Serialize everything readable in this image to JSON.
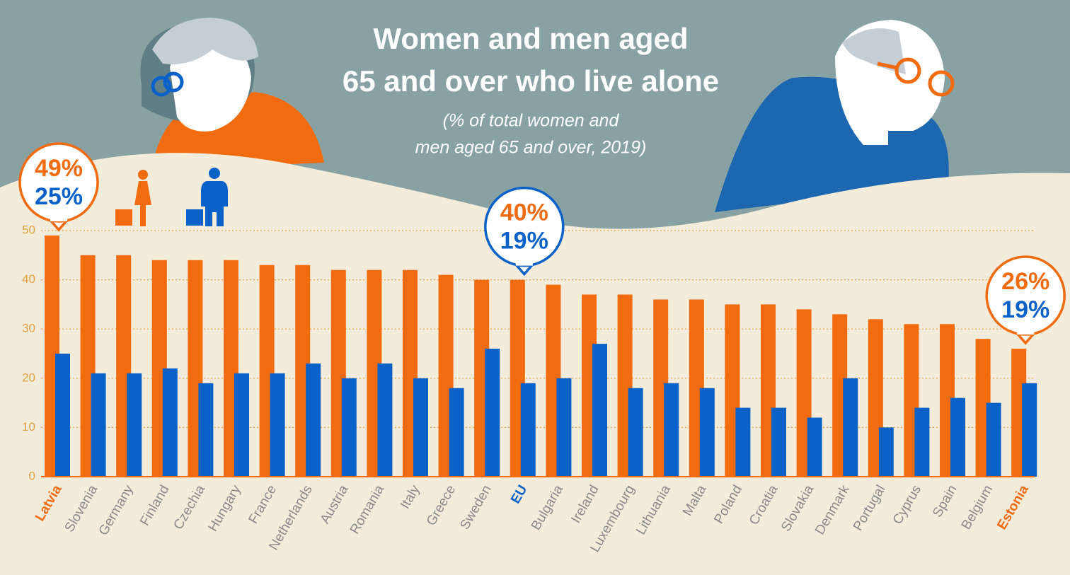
{
  "chart_data": {
    "type": "bar",
    "title_lines": [
      "Women and men aged",
      "65 and over who live alone"
    ],
    "subtitle_lines": [
      "(% of total women and",
      "men aged 65 and over, 2019)"
    ],
    "categories": [
      "Latvia",
      "Slovenia",
      "Germany",
      "Finland",
      "Czechia",
      "Hungary",
      "France",
      "Netherlands",
      "Austria",
      "Romania",
      "Italy",
      "Greece",
      "Sweden",
      "EU",
      "Bulgaria",
      "Ireland",
      "Luxembourg",
      "Lithuania",
      "Malta",
      "Poland",
      "Croatia",
      "Slovakia",
      "Denmark",
      "Portugal",
      "Cyprus",
      "Spain",
      "Belgium",
      "Estonia"
    ],
    "category_label_colors": [
      "#f26b0f",
      null,
      null,
      null,
      null,
      null,
      null,
      null,
      null,
      null,
      null,
      null,
      null,
      "#0a62c9",
      null,
      null,
      null,
      null,
      null,
      null,
      null,
      null,
      null,
      null,
      null,
      null,
      null,
      "#f26b0f"
    ],
    "series": [
      {
        "color": "#f26b0f",
        "values": [
          49,
          45,
          45,
          44,
          44,
          44,
          43,
          43,
          42,
          42,
          42,
          41,
          40,
          40,
          39,
          37,
          37,
          36,
          36,
          35,
          35,
          34,
          33,
          32,
          31,
          31,
          28,
          26
        ],
        "value_labels": [
          "49%",
          null,
          null,
          null,
          null,
          null,
          null,
          null,
          null,
          null,
          null,
          null,
          null,
          "40%",
          null,
          null,
          null,
          null,
          null,
          null,
          null,
          null,
          null,
          null,
          null,
          null,
          null,
          "26%"
        ]
      },
      {
        "color": "#0a62c9",
        "values": [
          25,
          21,
          21,
          22,
          19,
          21,
          21,
          23,
          20,
          23,
          20,
          18,
          26,
          19,
          20,
          27,
          18,
          19,
          18,
          14,
          14,
          12,
          20,
          10,
          14,
          16,
          15,
          19
        ],
        "value_labels": [
          "25%",
          null,
          null,
          null,
          null,
          null,
          null,
          null,
          null,
          null,
          null,
          null,
          null,
          "19%",
          null,
          null,
          null,
          null,
          null,
          null,
          null,
          null,
          null,
          null,
          null,
          null,
          null,
          "19%"
        ]
      }
    ],
    "ylim": [
      0,
      50
    ],
    "yticks": [
      0,
      10,
      20,
      30,
      40,
      50
    ],
    "grid": true
  }
}
